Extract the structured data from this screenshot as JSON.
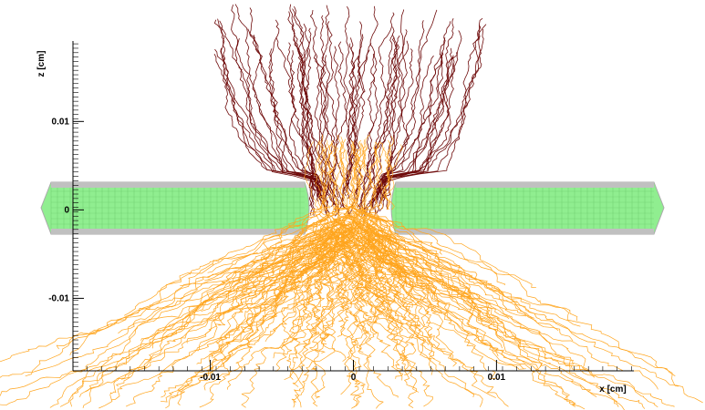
{
  "chart_data": {
    "type": "drift",
    "xlabel": "x [cm]",
    "ylabel": "z [cm]",
    "xlim": [
      -0.0196,
      0.0196
    ],
    "ylim": [
      -0.0182,
      0.0191
    ],
    "xticks": [
      -0.01,
      0,
      0.01
    ],
    "yticks": [
      -0.01,
      0,
      0.01
    ],
    "electron_color": "#6e0a0a",
    "ion_color": "#ffa51e",
    "electrode_color": "#90ee90"
  }
}
